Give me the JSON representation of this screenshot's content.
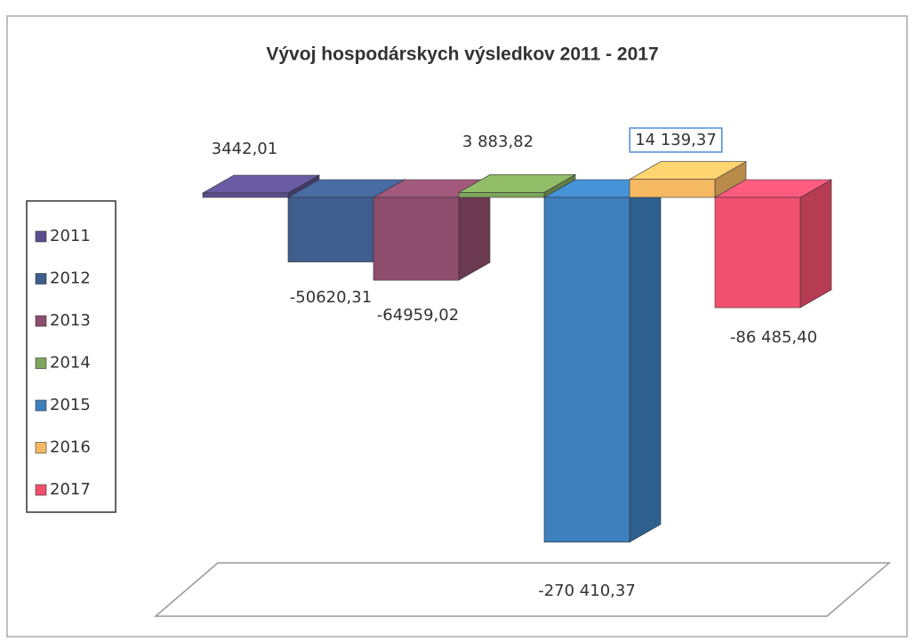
{
  "chart_data": {
    "type": "bar3d",
    "title": "Vývoj hospodárskych  výsledkov 2011 - 2017",
    "series": [
      {
        "name": "2011",
        "color": "#5b4f8f",
        "values": [
          3442.01
        ],
        "value_labels": [
          "3442,01"
        ]
      },
      {
        "name": "2012",
        "color": "#3f5e8e",
        "values": [
          -50620.31
        ],
        "value_labels": [
          "-50620,31"
        ]
      },
      {
        "name": "2013",
        "color": "#8e4d6c",
        "values": [
          -64959.02
        ],
        "value_labels": [
          "-64959,02"
        ]
      },
      {
        "name": "2014",
        "color": "#7fa55c",
        "values": [
          3883.82
        ],
        "value_labels": [
          "3 883,82"
        ]
      },
      {
        "name": "2015",
        "color": "#3d80bd",
        "values": [
          -270410.37
        ],
        "value_labels": [
          "-270 410,37"
        ]
      },
      {
        "name": "2016",
        "color": "#f5b962",
        "values": [
          14139.37
        ],
        "value_labels": [
          "14 139,37"
        ]
      },
      {
        "name": "2017",
        "color": "#f2506f",
        "values": [
          -86485.4
        ],
        "value_labels": [
          "-86 485,40"
        ]
      }
    ]
  }
}
